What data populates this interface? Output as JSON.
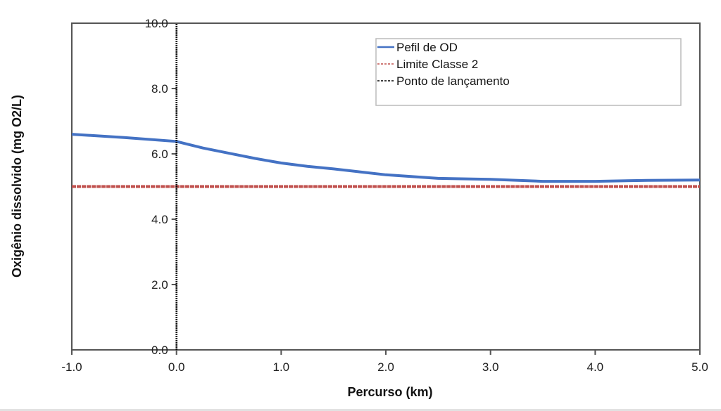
{
  "chart_data": {
    "type": "line",
    "title": "",
    "xlabel": "Percurso (km)",
    "ylabel": "Oxigênio dissolvido (mg O2/L)",
    "xlim": [
      -1.0,
      5.0
    ],
    "ylim": [
      0.0,
      10.0
    ],
    "x_ticks": [
      "-1.0",
      "0.0",
      "1.0",
      "2.0",
      "3.0",
      "4.0",
      "5.0"
    ],
    "y_ticks": [
      "0.0",
      "2.0",
      "4.0",
      "6.0",
      "8.0",
      "10.0"
    ],
    "grid": false,
    "legend_position": "upper right",
    "legend": [
      "Pefil de OD",
      "Limite Classe 2",
      "Ponto de lançamento"
    ],
    "series": [
      {
        "name": "Pefil de OD",
        "color": "#4472c4",
        "style": "solid",
        "x": [
          -1.0,
          -0.5,
          0.0,
          0.25,
          0.5,
          0.75,
          1.0,
          1.25,
          1.5,
          1.75,
          2.0,
          2.5,
          3.0,
          3.5,
          4.0,
          4.5,
          5.0
        ],
        "values": [
          6.6,
          6.5,
          6.38,
          6.18,
          6.02,
          5.86,
          5.72,
          5.62,
          5.54,
          5.45,
          5.36,
          5.25,
          5.22,
          5.16,
          5.16,
          5.19,
          5.2
        ]
      },
      {
        "name": "Limite Classe 2",
        "color": "#c0504d",
        "style": "dashed",
        "x": [
          -1.0,
          5.0
        ],
        "values": [
          5.0,
          5.0
        ]
      },
      {
        "name": "Ponto de lançamento",
        "color": "#000000",
        "style": "dashed",
        "x": [
          0.0,
          0.0
        ],
        "values": [
          0.0,
          10.0
        ]
      }
    ]
  }
}
